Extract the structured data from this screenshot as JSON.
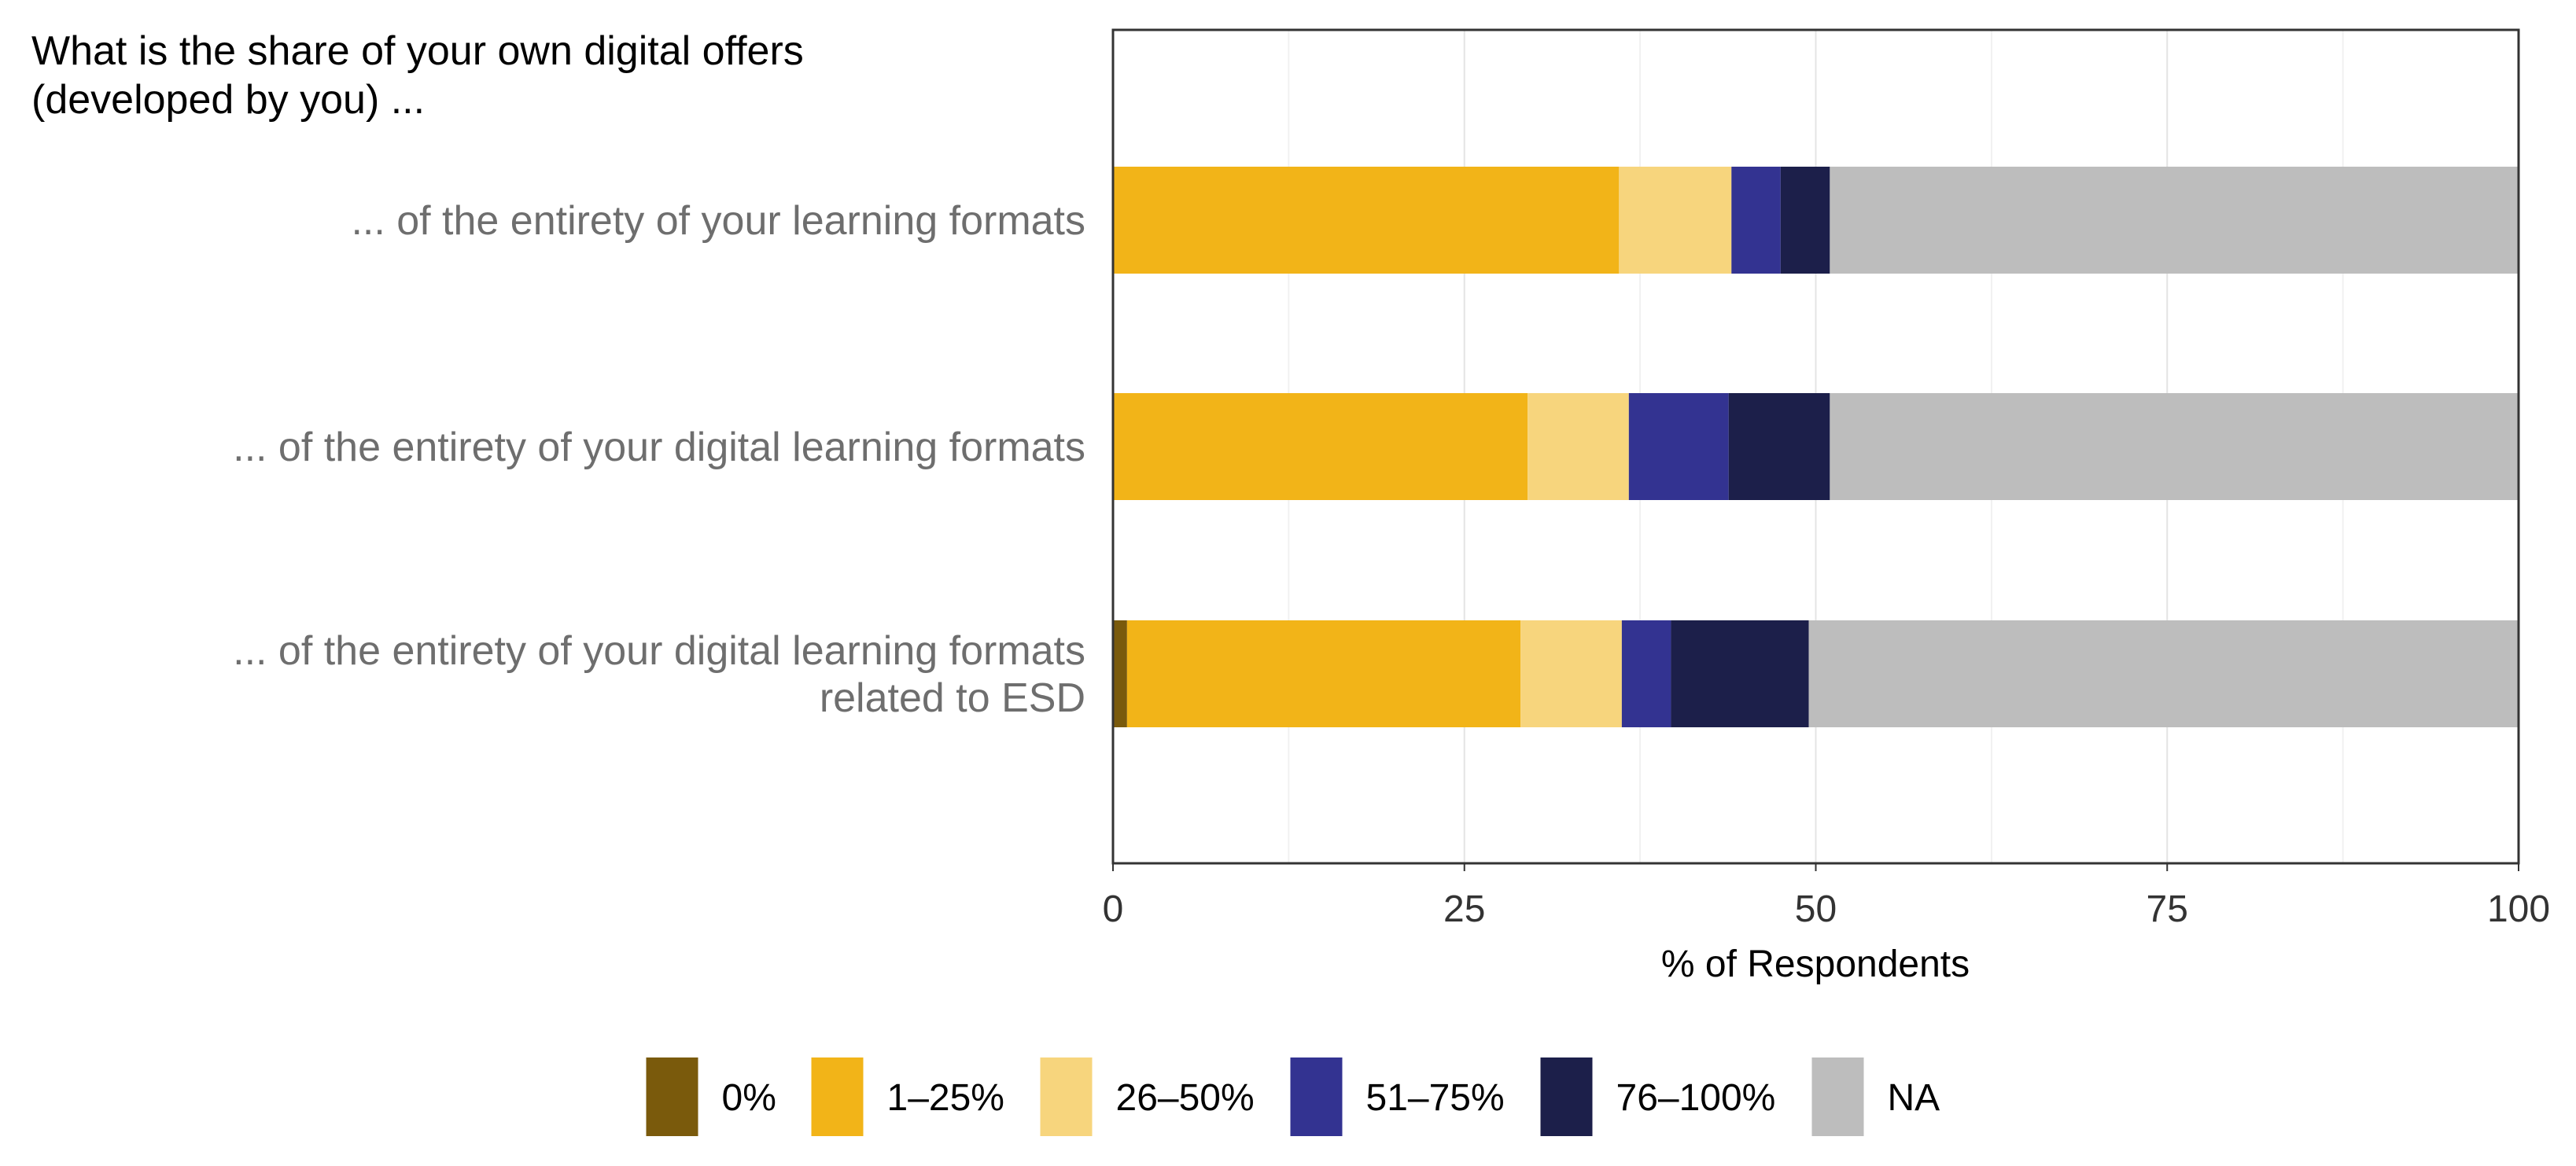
{
  "chart_data": {
    "type": "bar",
    "orientation": "horizontal",
    "stacked": true,
    "title": "What is the share of your own digital offers (developed by you) ...",
    "title_lines": [
      "What is the share of your own digital offers",
      "(developed by you) ..."
    ],
    "categories": [
      "... of the entirety of your learning formats",
      "... of the entirety of your digital learning formats",
      "... of the entirety of your digital learning formats related to ESD"
    ],
    "category_lines": [
      [
        "... of the entirety of your learning formats"
      ],
      [
        "... of the entirety of your digital learning formats"
      ],
      [
        "... of the entirety of your digital learning formats",
        "related to ESD"
      ]
    ],
    "series": [
      {
        "name": "0%",
        "color": "#7a5a0c",
        "values": [
          0,
          0,
          1
        ]
      },
      {
        "name": "1–25%",
        "color": "#f2b418",
        "values": [
          36,
          29.5,
          28
        ]
      },
      {
        "name": "26–50%",
        "color": "#f7d57d",
        "values": [
          8,
          7.2,
          7.2
        ]
      },
      {
        "name": "51–75%",
        "color": "#333391",
        "values": [
          3.5,
          7.1,
          3.5
        ]
      },
      {
        "name": "76–100%",
        "color": "#1c1f4a",
        "values": [
          3.5,
          7.2,
          9.8
        ]
      },
      {
        "name": "NA",
        "color": "#bdbdbd",
        "values": [
          49,
          49,
          50.5
        ]
      }
    ],
    "xlabel": "% of Respondents",
    "ylabel": "",
    "xlim": [
      0,
      100
    ],
    "xticks": [
      0,
      25,
      50,
      75,
      100
    ],
    "grid": true,
    "legend_position": "bottom"
  }
}
